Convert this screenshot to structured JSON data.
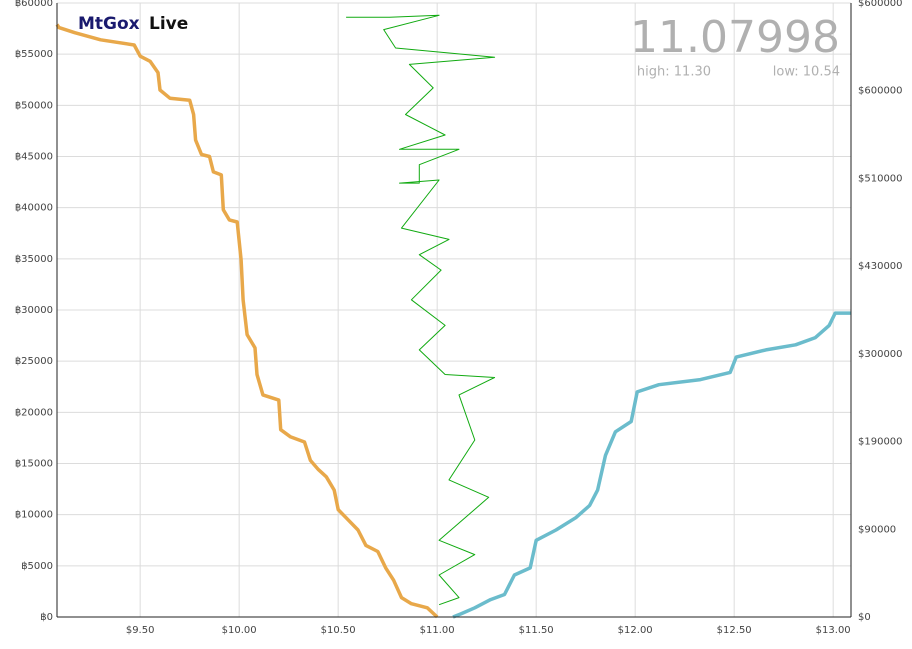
{
  "header": {
    "brand": "MtGox",
    "brand_suffix": "Live",
    "price": "11.07998",
    "high": "high: 11.30",
    "low": "low: 10.54"
  },
  "chart_data": {
    "type": "depth",
    "xlim": [
      9.08,
      13.09
    ],
    "ylim": [
      0,
      60000
    ],
    "xticks": [
      {
        "value": 9.5,
        "label": "$9.50"
      },
      {
        "value": 10,
        "label": "$10.00"
      },
      {
        "value": 10.5,
        "label": "$10.50"
      },
      {
        "value": 11,
        "label": "$11.00"
      },
      {
        "value": 11.5,
        "label": "$11.50"
      },
      {
        "value": 12,
        "label": "$12.00"
      },
      {
        "value": 12.5,
        "label": "$12.50"
      },
      {
        "value": 13,
        "label": "$13.00"
      }
    ],
    "yticks": [
      {
        "value": 0,
        "label": "฿0"
      },
      {
        "value": 5000,
        "label": "฿5000"
      },
      {
        "value": 10000,
        "label": "฿10000"
      },
      {
        "value": 15000,
        "label": "฿15000"
      },
      {
        "value": 20000,
        "label": "฿20000"
      },
      {
        "value": 25000,
        "label": "฿25000"
      },
      {
        "value": 30000,
        "label": "฿30000"
      },
      {
        "value": 35000,
        "label": "฿35000"
      },
      {
        "value": 40000,
        "label": "฿40000"
      },
      {
        "value": 45000,
        "label": "฿45000"
      },
      {
        "value": 50000,
        "label": "฿50000"
      },
      {
        "value": 55000,
        "label": "฿55000"
      },
      {
        "value": 60000,
        "label": "฿60000"
      }
    ],
    "y2_labels": [
      "$0",
      "$90000",
      "$190000",
      "$300000",
      "$430000",
      "$510000",
      "$600000",
      "$600000"
    ],
    "grid": true,
    "series": [
      {
        "color": "#e8a84a",
        "width": 3.5,
        "x": [
          9.08,
          9.09,
          9.17,
          9.3,
          9.47,
          9.5,
          9.55,
          9.59,
          9.6,
          9.65,
          9.75,
          9.77,
          9.78,
          9.81,
          9.85,
          9.87,
          9.91,
          9.92,
          9.95,
          9.99,
          10.01,
          10.02,
          10.04,
          10.08,
          10.09,
          10.12,
          10.2,
          10.21,
          10.26,
          10.33,
          10.36,
          10.4,
          10.44,
          10.48,
          10.5,
          10.55,
          10.6,
          10.64,
          10.7,
          10.74,
          10.78,
          10.82,
          10.87,
          10.95,
          11.0
        ],
        "values": [
          57900,
          57600,
          57100,
          56400,
          55900,
          54800,
          54300,
          53200,
          51500,
          50700,
          50500,
          49100,
          46600,
          45200,
          45000,
          43500,
          43200,
          39800,
          38800,
          38600,
          34900,
          31000,
          27600,
          26300,
          23700,
          21700,
          21200,
          18300,
          17600,
          17100,
          15300,
          14400,
          13700,
          12400,
          10500,
          9500,
          8500,
          7000,
          6400,
          4800,
          3600,
          1900,
          1300,
          900,
          0
        ]
      },
      {
        "color": "#6bbccc",
        "width": 3.5,
        "x": [
          11.08,
          11.12,
          11.19,
          11.27,
          11.34,
          11.39,
          11.47,
          11.5,
          11.6,
          11.7,
          11.77,
          11.81,
          11.85,
          11.9,
          11.98,
          12.01,
          12.12,
          12.33,
          12.48,
          12.51,
          12.66,
          12.81,
          12.91,
          12.98,
          13.01,
          13.09
        ],
        "values": [
          0,
          300,
          900,
          1700,
          2200,
          4100,
          4800,
          7500,
          8500,
          9700,
          10900,
          12400,
          15800,
          18100,
          19100,
          22000,
          22700,
          23200,
          23900,
          25400,
          26100,
          26600,
          27300,
          28500,
          29700,
          29700
        ]
      },
      {
        "color": "#11aa11",
        "width": 1,
        "x": [
          10.54,
          10.76,
          11.01,
          10.73,
          10.79,
          11.29,
          10.86,
          10.98,
          10.84,
          11.04,
          10.81,
          11.11,
          10.91,
          10.91,
          10.81,
          11.01,
          10.82,
          11.06,
          10.91,
          11.02,
          10.87,
          11.04,
          10.91,
          11.04,
          11.29,
          11.11,
          11.19,
          11.06,
          11.26,
          11.01,
          11.19,
          11.01,
          11.11,
          11.01
        ],
        "values": [
          58600,
          58600,
          58800,
          57400,
          55600,
          54700,
          54000,
          51700,
          49100,
          47100,
          45700,
          45700,
          44200,
          42400,
          42400,
          42700,
          38000,
          36900,
          35400,
          33900,
          31000,
          28500,
          26100,
          23700,
          23400,
          21700,
          17300,
          13400,
          11700,
          7500,
          6100,
          4100,
          1900,
          1200
        ]
      }
    ]
  }
}
